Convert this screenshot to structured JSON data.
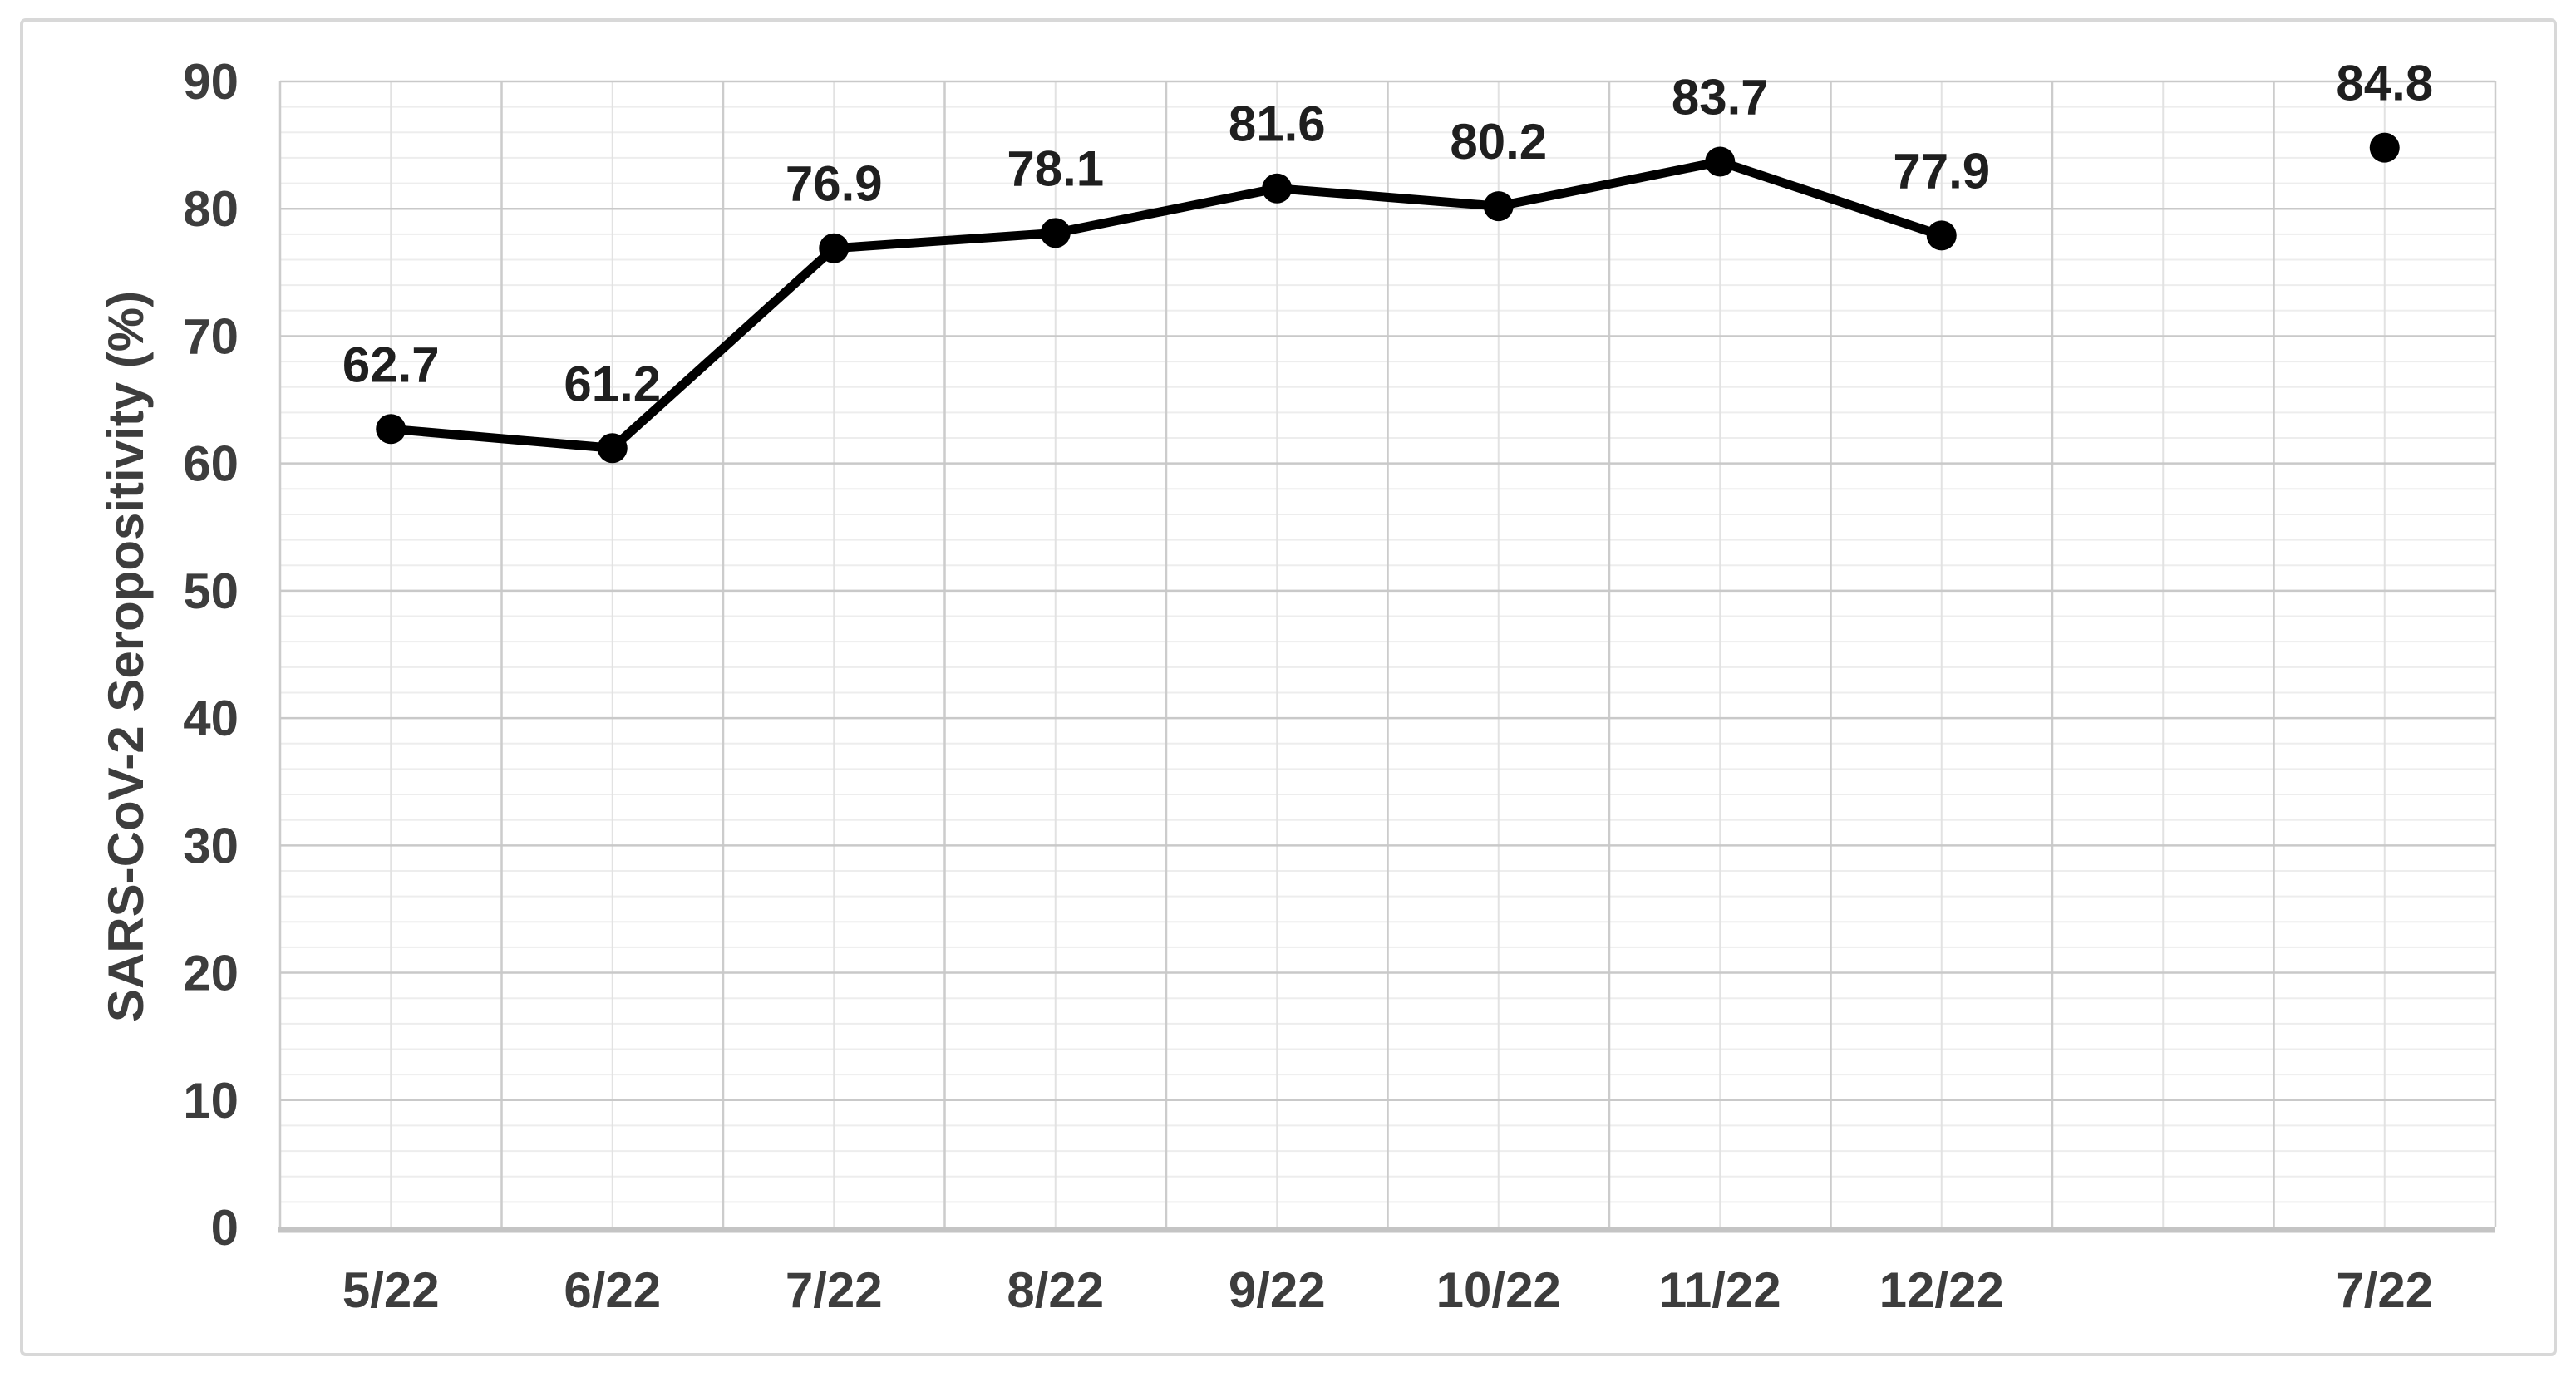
{
  "frame": {
    "background": "#ffffff",
    "border_color": "#d8d8d8"
  },
  "chart_data": {
    "type": "line",
    "title": "",
    "xlabel": "",
    "ylabel": "SARS-CoV-2 Seropositivity (%)",
    "categories": [
      "5/22",
      "6/22",
      "7/22",
      "8/22",
      "9/22",
      "10/22",
      "11/22",
      "12/22",
      "",
      "7/22"
    ],
    "series": [
      {
        "name": "SARS-CoV-2 Seropositivity (%)",
        "values": [
          62.7,
          61.2,
          76.9,
          78.1,
          81.6,
          80.2,
          83.7,
          77.9,
          null,
          84.8
        ]
      }
    ],
    "data_labels": [
      "62.7",
      "61.2",
      "76.9",
      "78.1",
      "81.6",
      "80.2",
      "83.7",
      "77.9",
      "",
      "84.8"
    ],
    "note": "point at last category 7/22 (84.8) is isolated, not connected to the line",
    "ylim": [
      0,
      90
    ],
    "ytick_step": 10,
    "yminor_step": 2,
    "yticks": [
      "0",
      "10",
      "20",
      "30",
      "40",
      "50",
      "60",
      "70",
      "80",
      "90"
    ],
    "grid": {
      "major_horizontal": true,
      "minor_horizontal": true,
      "major_vertical": true,
      "minor_vertical": true
    },
    "legend_position": "none",
    "style": {
      "line_color": "#000000",
      "marker_color": "#000000",
      "line_width": 11,
      "marker_radius": 18,
      "major_grid_color": "#c9c9c9",
      "minor_h_grid_color": "#ededed",
      "minor_v_grid_color": "#e2e2e2",
      "major_v_grid_color": "#cccccc",
      "axis_line_color": "#c4c4c4",
      "tick_label_color": "#3d3d3d",
      "data_label_color": "#1f1f1f",
      "axis_title_color": "#3d3d3d"
    }
  }
}
